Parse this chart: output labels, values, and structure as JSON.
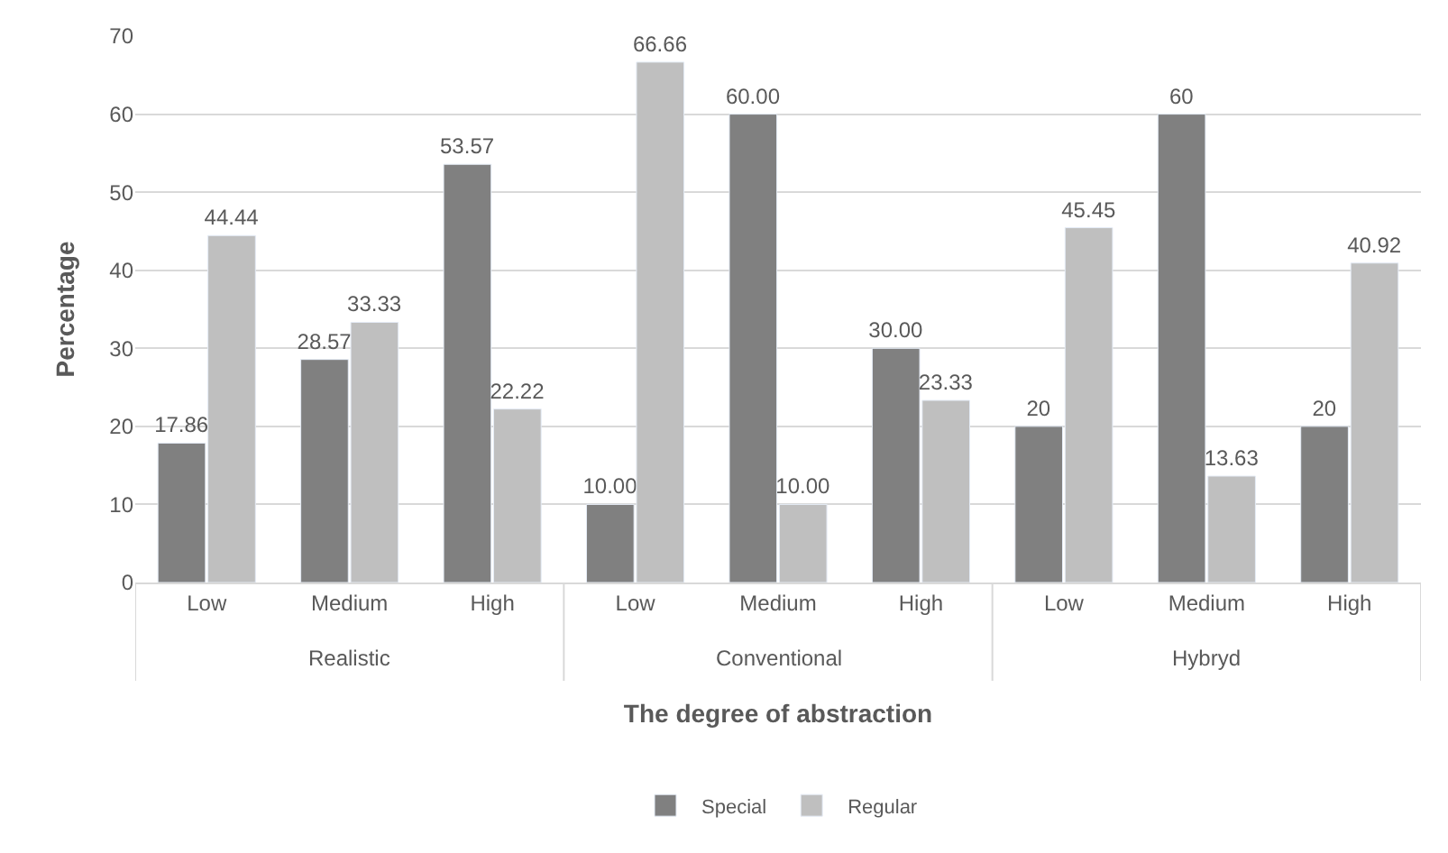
{
  "chart_data": {
    "type": "bar",
    "xlabel": "The degree of abstraction",
    "ylabel": "Percentage",
    "categories": [
      "Low",
      "Medium",
      "High",
      "Low",
      "Medium",
      "High",
      "Low",
      "Medium",
      "High"
    ],
    "annotations": [
      "Realistic",
      "Conventional",
      "Hybryd"
    ],
    "series": [
      {
        "name": "Special",
        "color": "#808080",
        "values": [
          17.86,
          28.57,
          53.57,
          10.0,
          60.0,
          30.0,
          20,
          60,
          20
        ],
        "value_labels": [
          "17.86",
          "28.57",
          "53.57",
          "10.00",
          "60.00",
          "30.00",
          "20",
          "60",
          "20"
        ]
      },
      {
        "name": "Regular",
        "color": "#bfbfbf",
        "values": [
          44.44,
          33.33,
          22.22,
          66.66,
          10.0,
          23.33,
          45.45,
          13.63,
          40.92
        ],
        "value_labels": [
          "44.44",
          "33.33",
          "22.22",
          "66.66",
          "10.00",
          "23.33",
          "45.45",
          "13.63",
          "40.92"
        ]
      }
    ],
    "ylim": [
      0,
      70
    ],
    "yticks": [
      0,
      10,
      20,
      30,
      40,
      50,
      60,
      70
    ],
    "grid": "y",
    "legend": "bottom"
  }
}
